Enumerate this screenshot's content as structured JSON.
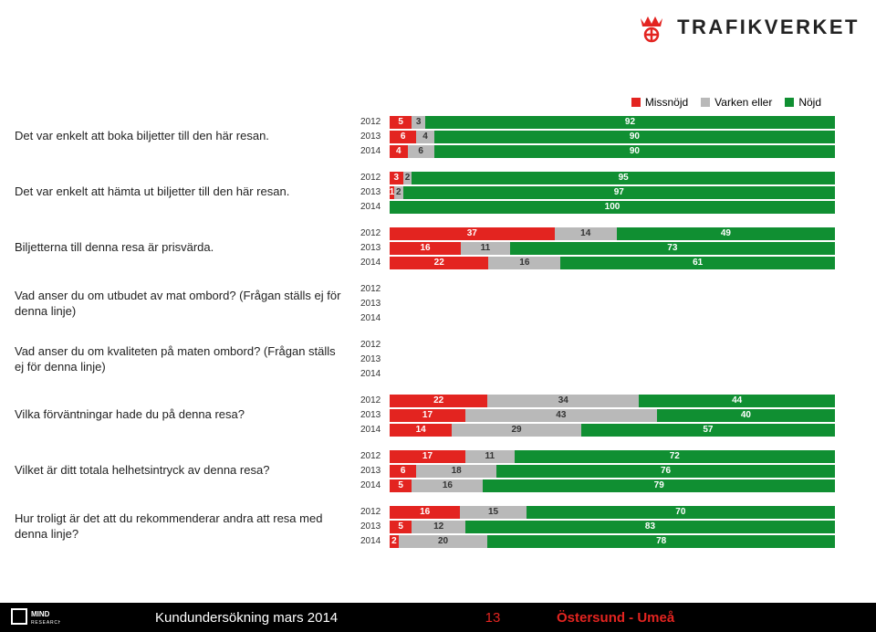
{
  "brand": {
    "name": "TRAFIKVERKET"
  },
  "colors": {
    "missnojd": "#e32420",
    "varken": "#b9b9b9",
    "nojd": "#108f32",
    "text_on_red": "#ffffff",
    "text_on_gray": "#333333",
    "text_on_green": "#ffffff",
    "background": "#ffffff"
  },
  "legend": {
    "items": [
      {
        "label": "Missnöjd",
        "color": "#e32420"
      },
      {
        "label": "Varken eller",
        "color": "#b9b9b9"
      },
      {
        "label": "Nöjd",
        "color": "#108f32"
      }
    ]
  },
  "questions": [
    {
      "label": "Det var enkelt att boka biljetter till den här resan.",
      "rows": [
        {
          "year": "2012",
          "segments": [
            {
              "v": 5
            },
            {
              "v": 3
            },
            {
              "v": 92
            }
          ]
        },
        {
          "year": "2013",
          "segments": [
            {
              "v": 6
            },
            {
              "v": 4
            },
            {
              "v": 90
            }
          ]
        },
        {
          "year": "2014",
          "segments": [
            {
              "v": 4
            },
            {
              "v": 6
            },
            {
              "v": 90
            }
          ]
        }
      ]
    },
    {
      "label": "Det var enkelt att hämta ut biljetter till den här resan.",
      "rows": [
        {
          "year": "2012",
          "segments": [
            {
              "v": 3
            },
            {
              "v": 2
            },
            {
              "v": 95
            }
          ]
        },
        {
          "year": "2013",
          "segments": [
            {
              "v": 1
            },
            {
              "v": 2
            },
            {
              "v": 97
            }
          ]
        },
        {
          "year": "2014",
          "segments": [
            {
              "v": 0
            },
            {
              "v": 0
            },
            {
              "v": 100
            }
          ]
        }
      ]
    },
    {
      "label": "Biljetterna till denna resa är prisvärda.",
      "rows": [
        {
          "year": "2012",
          "segments": [
            {
              "v": 37
            },
            {
              "v": 14
            },
            {
              "v": 49
            }
          ]
        },
        {
          "year": "2013",
          "segments": [
            {
              "v": 16
            },
            {
              "v": 11
            },
            {
              "v": 73
            }
          ]
        },
        {
          "year": "2014",
          "segments": [
            {
              "v": 22
            },
            {
              "v": 16
            },
            {
              "v": 61
            }
          ]
        }
      ]
    },
    {
      "label": "Vad anser du om utbudet av mat ombord? (Frågan ställs ej för denna linje)",
      "rows": [
        {
          "year": "2012",
          "segments": []
        },
        {
          "year": "2013",
          "segments": []
        },
        {
          "year": "2014",
          "segments": []
        }
      ]
    },
    {
      "label": "Vad anser du om kvaliteten på maten ombord? (Frågan ställs ej för denna linje)",
      "rows": [
        {
          "year": "2012",
          "segments": []
        },
        {
          "year": "2013",
          "segments": []
        },
        {
          "year": "2014",
          "segments": []
        }
      ]
    },
    {
      "label": "Vilka förväntningar hade du på denna resa?",
      "rows": [
        {
          "year": "2012",
          "segments": [
            {
              "v": 22
            },
            {
              "v": 34
            },
            {
              "v": 44
            }
          ]
        },
        {
          "year": "2013",
          "segments": [
            {
              "v": 17
            },
            {
              "v": 43
            },
            {
              "v": 40
            }
          ]
        },
        {
          "year": "2014",
          "segments": [
            {
              "v": 14
            },
            {
              "v": 29
            },
            {
              "v": 57
            }
          ]
        }
      ]
    },
    {
      "label": "Vilket är ditt totala helhetsintryck av denna resa?",
      "rows": [
        {
          "year": "2012",
          "segments": [
            {
              "v": 17
            },
            {
              "v": 11
            },
            {
              "v": 72
            }
          ]
        },
        {
          "year": "2013",
          "segments": [
            {
              "v": 6
            },
            {
              "v": 18
            },
            {
              "v": 76
            }
          ]
        },
        {
          "year": "2014",
          "segments": [
            {
              "v": 5
            },
            {
              "v": 16
            },
            {
              "v": 79
            }
          ]
        }
      ]
    },
    {
      "label": "Hur troligt är det att du rekommenderar andra att resa med denna linje?",
      "rows": [
        {
          "year": "2012",
          "segments": [
            {
              "v": 16
            },
            {
              "v": 15
            },
            {
              "v": 70
            }
          ]
        },
        {
          "year": "2013",
          "segments": [
            {
              "v": 5
            },
            {
              "v": 12
            },
            {
              "v": 83
            }
          ]
        },
        {
          "year": "2014",
          "segments": [
            {
              "v": 2
            },
            {
              "v": 20
            },
            {
              "v": 78
            }
          ]
        }
      ]
    }
  ],
  "footer": {
    "brand_small": "MIND",
    "brand_small_sub": "RESEARCH",
    "center": "Kundundersökning mars 2014",
    "page": "13",
    "right": "Östersund - Umeå"
  }
}
